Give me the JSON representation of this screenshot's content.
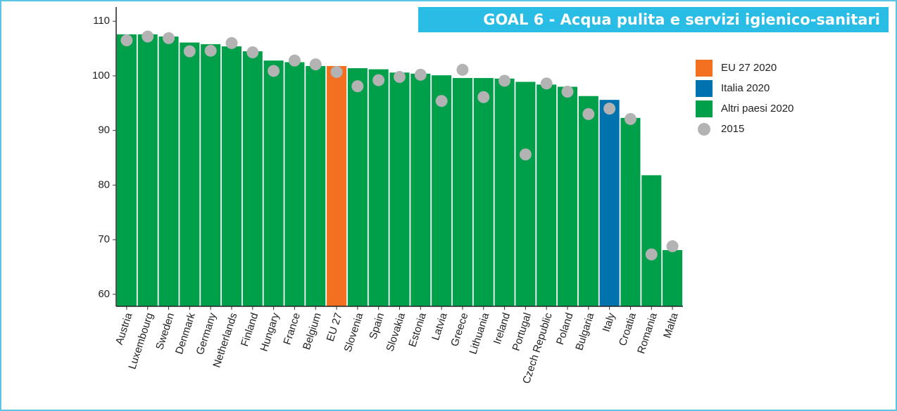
{
  "chart_data": {
    "type": "bar",
    "title": "GOAL 6 - Acqua pulita e servizi igienico-sanitari",
    "categories": [
      "Austria",
      "Luxembourg",
      "Sweden",
      "Denmark",
      "Germany",
      "Netherlands",
      "Finland",
      "Hungary",
      "France",
      "Belgium",
      "EU 27",
      "Slovenia",
      "Spain",
      "Slovakia",
      "Estonia",
      "Latvia",
      "Greece",
      "Lithuania",
      "Ireland",
      "Portugal",
      "Czech Republic",
      "Poland",
      "Bulgaria",
      "Italy",
      "Croatia",
      "Romania",
      "Malta"
    ],
    "bars": {
      "values": [
        107.6,
        107.6,
        107.2,
        106.1,
        105.8,
        105.4,
        104.5,
        102.8,
        102.5,
        101.8,
        101.8,
        101.4,
        101.2,
        100.6,
        100.4,
        100.1,
        99.6,
        99.6,
        99.5,
        98.9,
        98.4,
        98.0,
        96.3,
        95.6,
        92.3,
        81.8,
        68.1
      ],
      "colors": [
        "#00a04b",
        "#00a04b",
        "#00a04b",
        "#00a04b",
        "#00a04b",
        "#00a04b",
        "#00a04b",
        "#00a04b",
        "#00a04b",
        "#00a04b",
        "#f37021",
        "#00a04b",
        "#00a04b",
        "#00a04b",
        "#00a04b",
        "#00a04b",
        "#00a04b",
        "#00a04b",
        "#00a04b",
        "#00a04b",
        "#00a04b",
        "#00a04b",
        "#00a04b",
        "#0072ae",
        "#00a04b",
        "#00a04b",
        "#00a04b"
      ]
    },
    "legend": [
      {
        "label": "EU 27 2020",
        "color": "#f37021"
      },
      {
        "label": "Italia 2020",
        "color": "#0072ae"
      },
      {
        "label": "Altri paesi 2020",
        "color": "#00a04b"
      }
    ],
    "series": [
      {
        "name": "2015",
        "color": "#b3b3b3",
        "values": [
          106.5,
          107.2,
          106.9,
          104.5,
          104.6,
          106.0,
          104.3,
          100.9,
          102.8,
          102.1,
          100.7,
          98.1,
          99.2,
          99.8,
          100.2,
          95.4,
          101.1,
          96.1,
          99.1,
          85.6,
          98.6,
          97.1,
          93.0,
          94.0,
          92.1,
          67.3,
          68.8
        ]
      }
    ],
    "ylim": [
      57.8,
      112.6
    ],
    "yticks": [
      60,
      70,
      80,
      90,
      100,
      110
    ]
  }
}
